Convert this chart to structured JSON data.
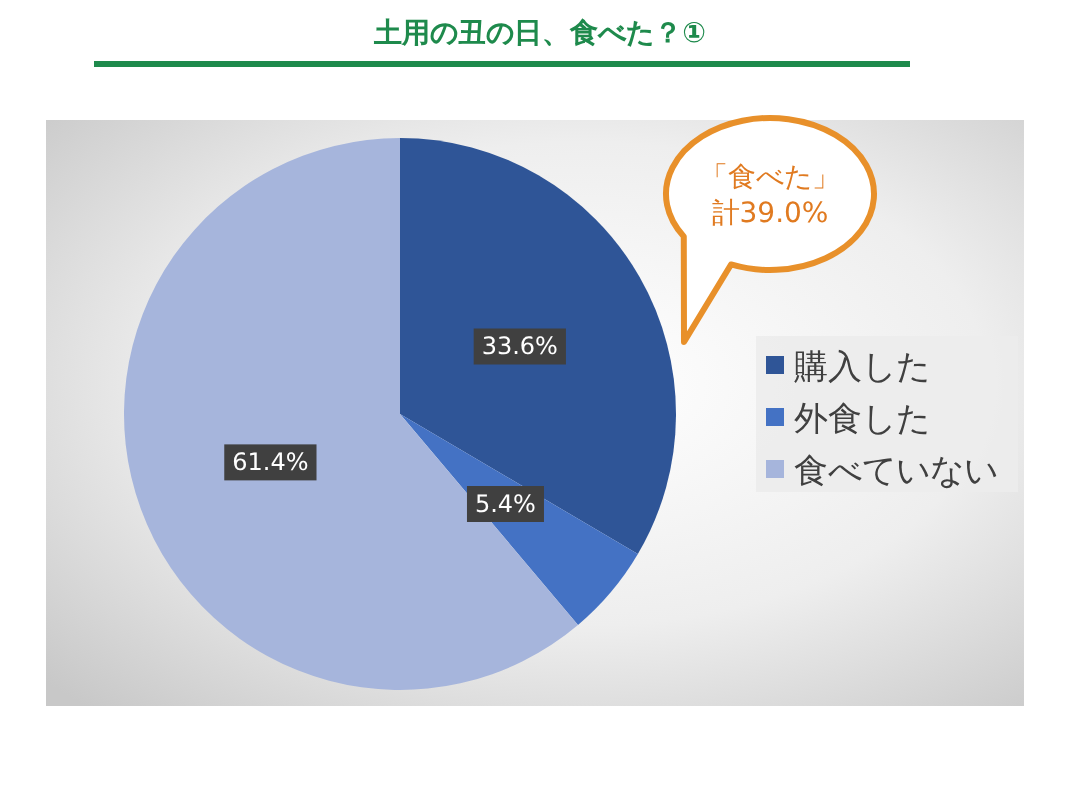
{
  "chart_data": {
    "type": "pie",
    "title": "土用の丑の日、食べた？①",
    "categories": [
      "購入した",
      "外食した",
      "食べていない"
    ],
    "values": [
      33.6,
      5.4,
      61.4
    ],
    "value_labels": [
      "33.6%",
      "5.4%",
      "61.4%"
    ],
    "colors": [
      "#2f5597",
      "#4472c4",
      "#a6b5dc"
    ],
    "legend": "right",
    "annotations": [
      "「食べた」",
      "計39.0%"
    ]
  }
}
